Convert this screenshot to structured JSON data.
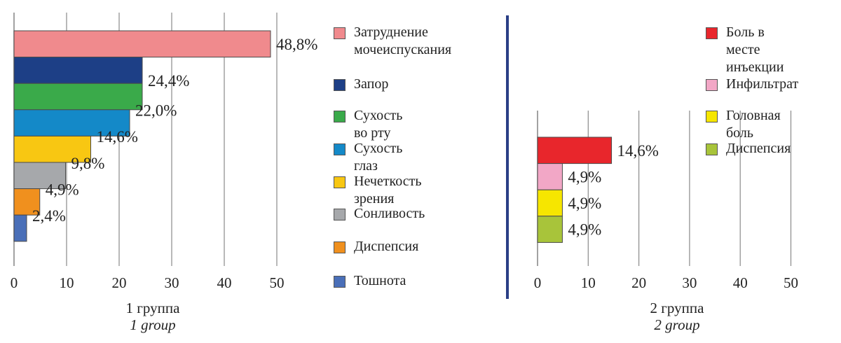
{
  "chart_data": [
    {
      "type": "bar",
      "orientation": "horizontal",
      "title": "1 группа",
      "subtitle": "1 group",
      "xlim": [
        0,
        50
      ],
      "xticks": [
        0,
        10,
        20,
        30,
        40,
        50
      ],
      "grid": true,
      "legend_position": "right",
      "categories": [
        "Затруднение мочеиспускания",
        "Запор",
        "Сухость во рту",
        "Сухость глаз",
        "Нечеткость зрения",
        "Сонливость",
        "Диспепсия",
        "Тошнота"
      ],
      "values": [
        48.8,
        24.4,
        24.4,
        22.0,
        14.6,
        9.8,
        4.9,
        2.4
      ],
      "labels": [
        "48,8%",
        "",
        "24,4%",
        "22,0%",
        "14,6%",
        "9,8%",
        "4,9%",
        "2,4%"
      ],
      "colors": [
        "#f08a8d",
        "#1d3f86",
        "#3aaa4a",
        "#1489c8",
        "#f8c712",
        "#a6a8ab",
        "#f0901e",
        "#4a6fb8"
      ],
      "legend": [
        {
          "lines": [
            "Затруднение",
            "мочеиспускания"
          ],
          "color": "#f08a8d"
        },
        {
          "lines": [
            "Запор"
          ],
          "color": "#1d3f86"
        },
        {
          "lines": [
            "Сухость во рту"
          ],
          "color": "#3aaa4a"
        },
        {
          "lines": [
            "Сухость глаз"
          ],
          "color": "#1489c8"
        },
        {
          "lines": [
            "Нечеткость зрения"
          ],
          "color": "#f8c712"
        },
        {
          "lines": [
            "Сонливость"
          ],
          "color": "#a6a8ab"
        },
        {
          "lines": [
            "Диспепсия"
          ],
          "color": "#f0901e"
        },
        {
          "lines": [
            "Тошнота"
          ],
          "color": "#4a6fb8"
        }
      ]
    },
    {
      "type": "bar",
      "orientation": "horizontal",
      "title": "2 группа",
      "subtitle": "2 group",
      "xlim": [
        0,
        50
      ],
      "xticks": [
        0,
        10,
        20,
        30,
        40,
        50
      ],
      "grid": true,
      "legend_position": "top-right",
      "categories": [
        "Боль в месте инъекции",
        "Инфильтрат",
        "Головная боль",
        "Диспепсия"
      ],
      "values": [
        14.6,
        4.9,
        4.9,
        4.9
      ],
      "labels": [
        "14,6%",
        "4,9%",
        "4,9%",
        "4,9%"
      ],
      "colors": [
        "#e8262c",
        "#f2a7c6",
        "#f6e600",
        "#a8c43a"
      ],
      "legend": [
        {
          "lines": [
            "Боль в месте",
            "инъекции"
          ],
          "color": "#e8262c"
        },
        {
          "lines": [
            "Инфильтрат"
          ],
          "color": "#f2a7c6"
        },
        {
          "lines": [
            "Головная боль"
          ],
          "color": "#f6e600"
        },
        {
          "lines": [
            "Диспепсия"
          ],
          "color": "#a8c43a"
        }
      ]
    }
  ]
}
